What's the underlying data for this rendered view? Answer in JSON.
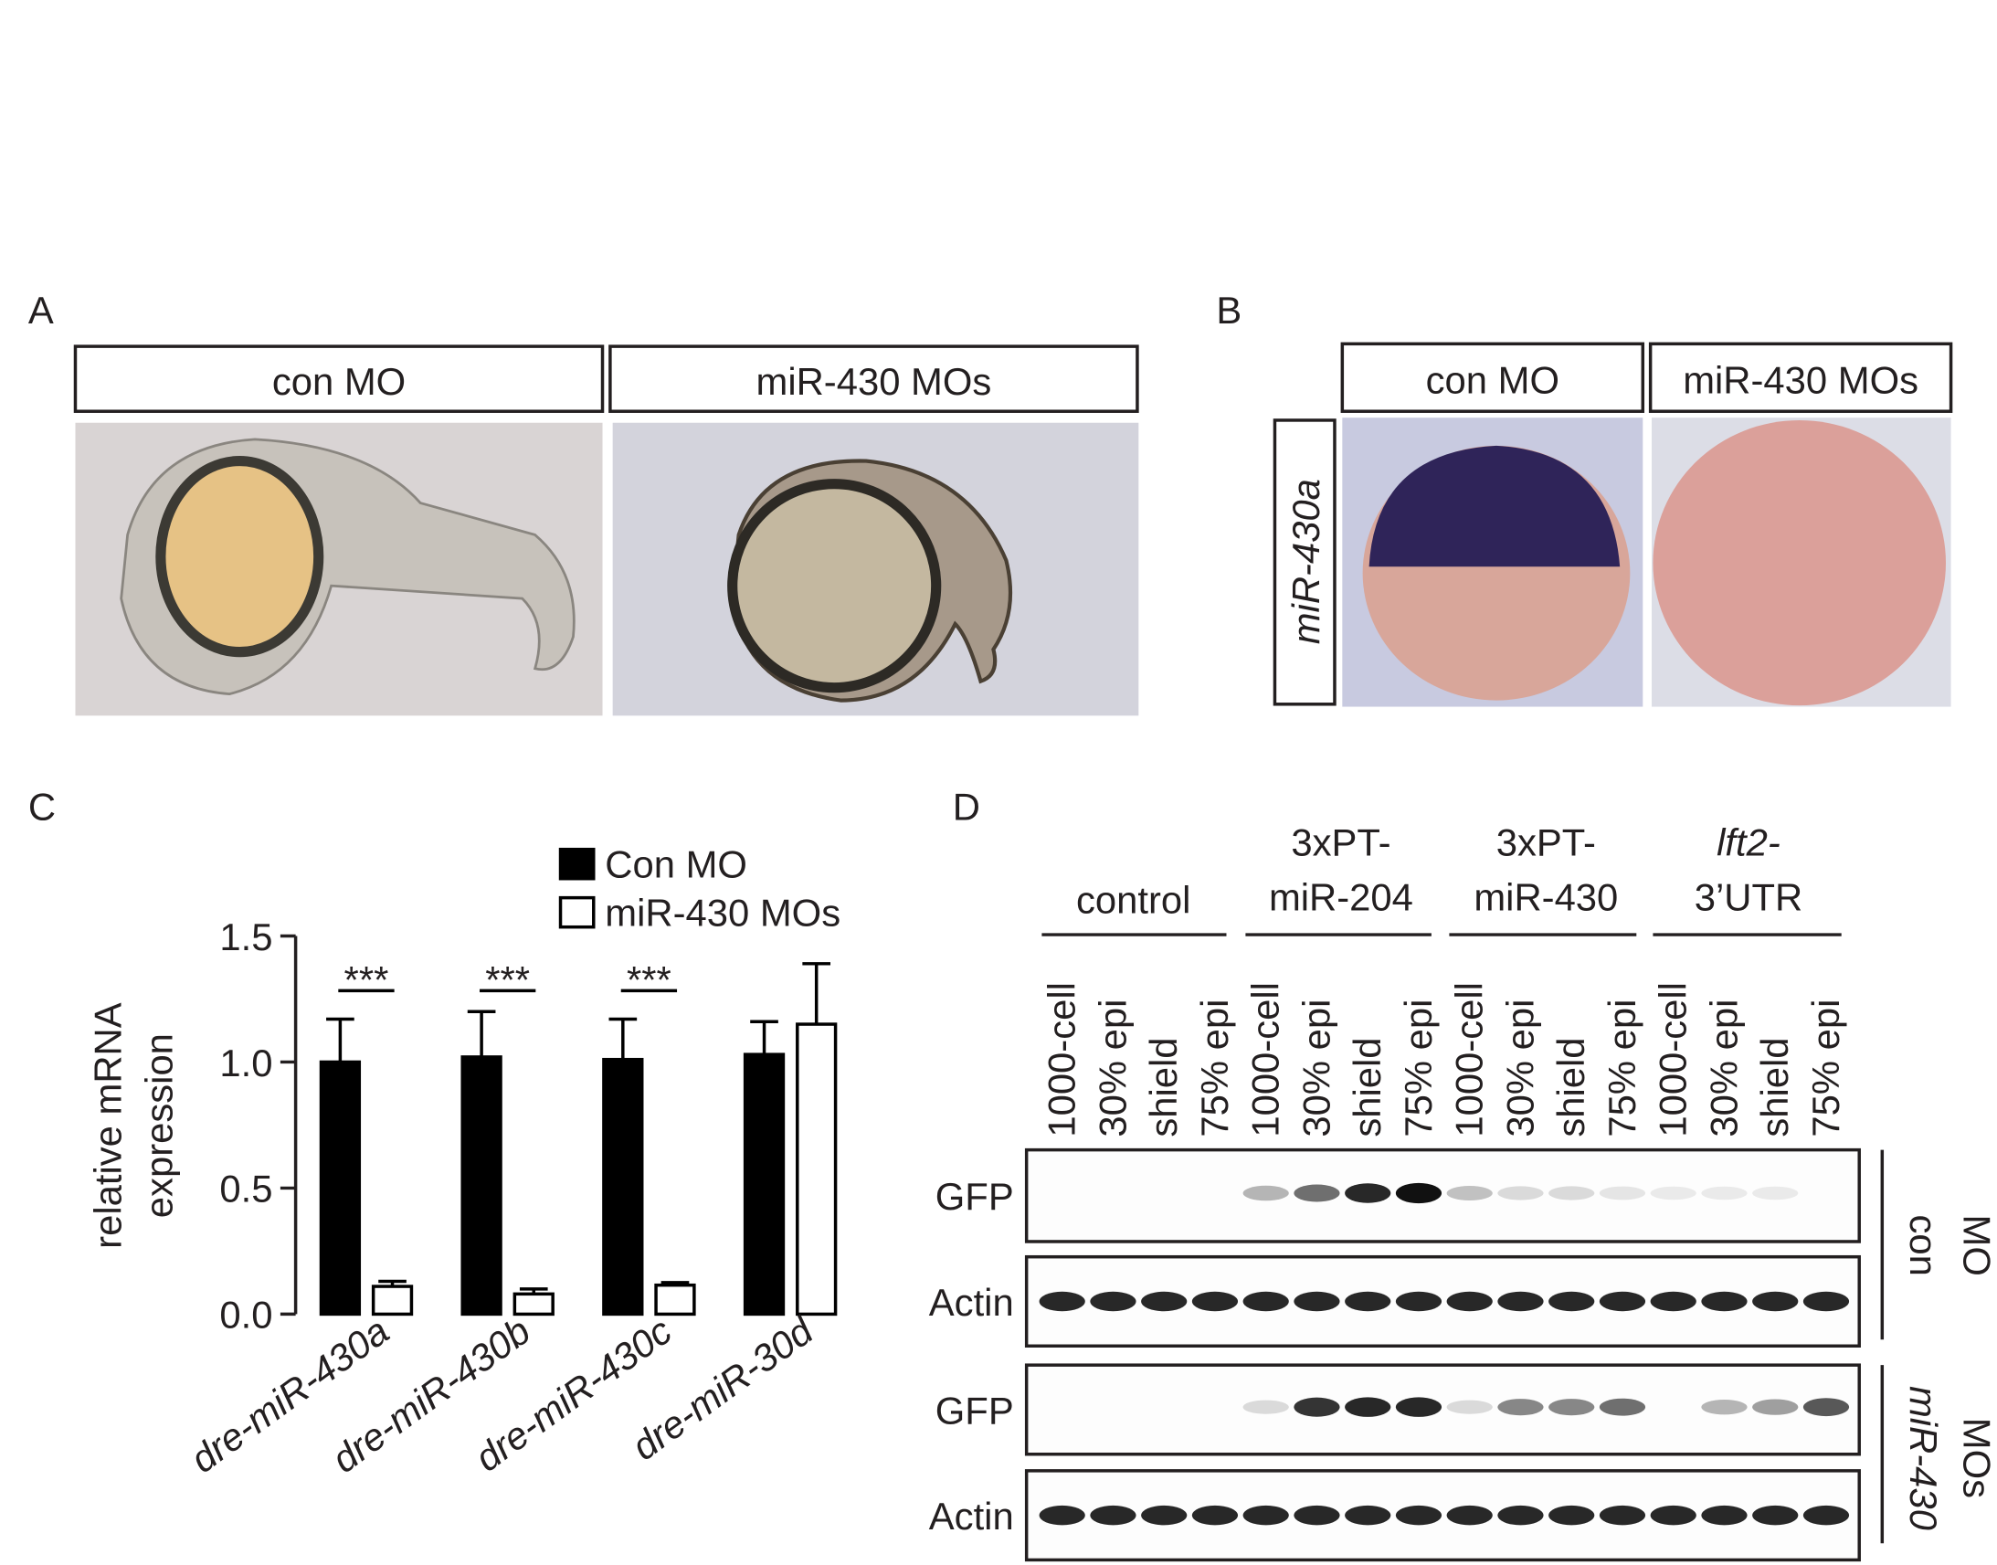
{
  "panels": {
    "A": {
      "label": "A",
      "headers": [
        "con MO",
        "miR-430 MOs"
      ]
    },
    "B": {
      "label": "B",
      "headers": [
        "con MO",
        "miR-430 MOs"
      ],
      "row_label": "miR-430a"
    },
    "C": {
      "label": "C"
    },
    "D": {
      "label": "D",
      "groups": [
        [
          "control"
        ],
        [
          "3xPT-",
          "miR-204"
        ],
        [
          "3xPT-",
          "miR-430"
        ],
        [
          "lft2-",
          "3’UTR"
        ]
      ],
      "lanes": [
        "1000-cell",
        "30% epi",
        "shield",
        "75% epi"
      ],
      "rows": [
        "GFP",
        "Actin",
        "GFP",
        "Actin"
      ],
      "conditions": [
        [
          "con",
          "MO"
        ],
        [
          "miR-430",
          "MOs"
        ]
      ]
    }
  },
  "chart_data": {
    "type": "bar",
    "ylabel": [
      "relative mRNA",
      "expression"
    ],
    "categories": [
      "dre-miR-430a",
      "dre-miR-430b",
      "dre-miR-430c",
      "dre-miR-30d"
    ],
    "series": [
      {
        "name": "Con MO",
        "color": "#000000",
        "values": [
          1.0,
          1.02,
          1.01,
          1.03
        ],
        "errors": [
          0.17,
          0.18,
          0.16,
          0.13
        ]
      },
      {
        "name": "miR-430 MOs",
        "color": "#ffffff",
        "values": [
          0.11,
          0.08,
          0.115,
          1.15
        ],
        "errors": [
          0.02,
          0.02,
          0.01,
          0.24
        ]
      }
    ],
    "annotations": [
      "***",
      "***",
      "***"
    ],
    "ylim": [
      0,
      1.5
    ],
    "yticks": [
      {
        "value": 0,
        "label": "0.0"
      },
      0.5,
      {
        "value": 1,
        "label": "1.0"
      },
      1.5
    ]
  }
}
